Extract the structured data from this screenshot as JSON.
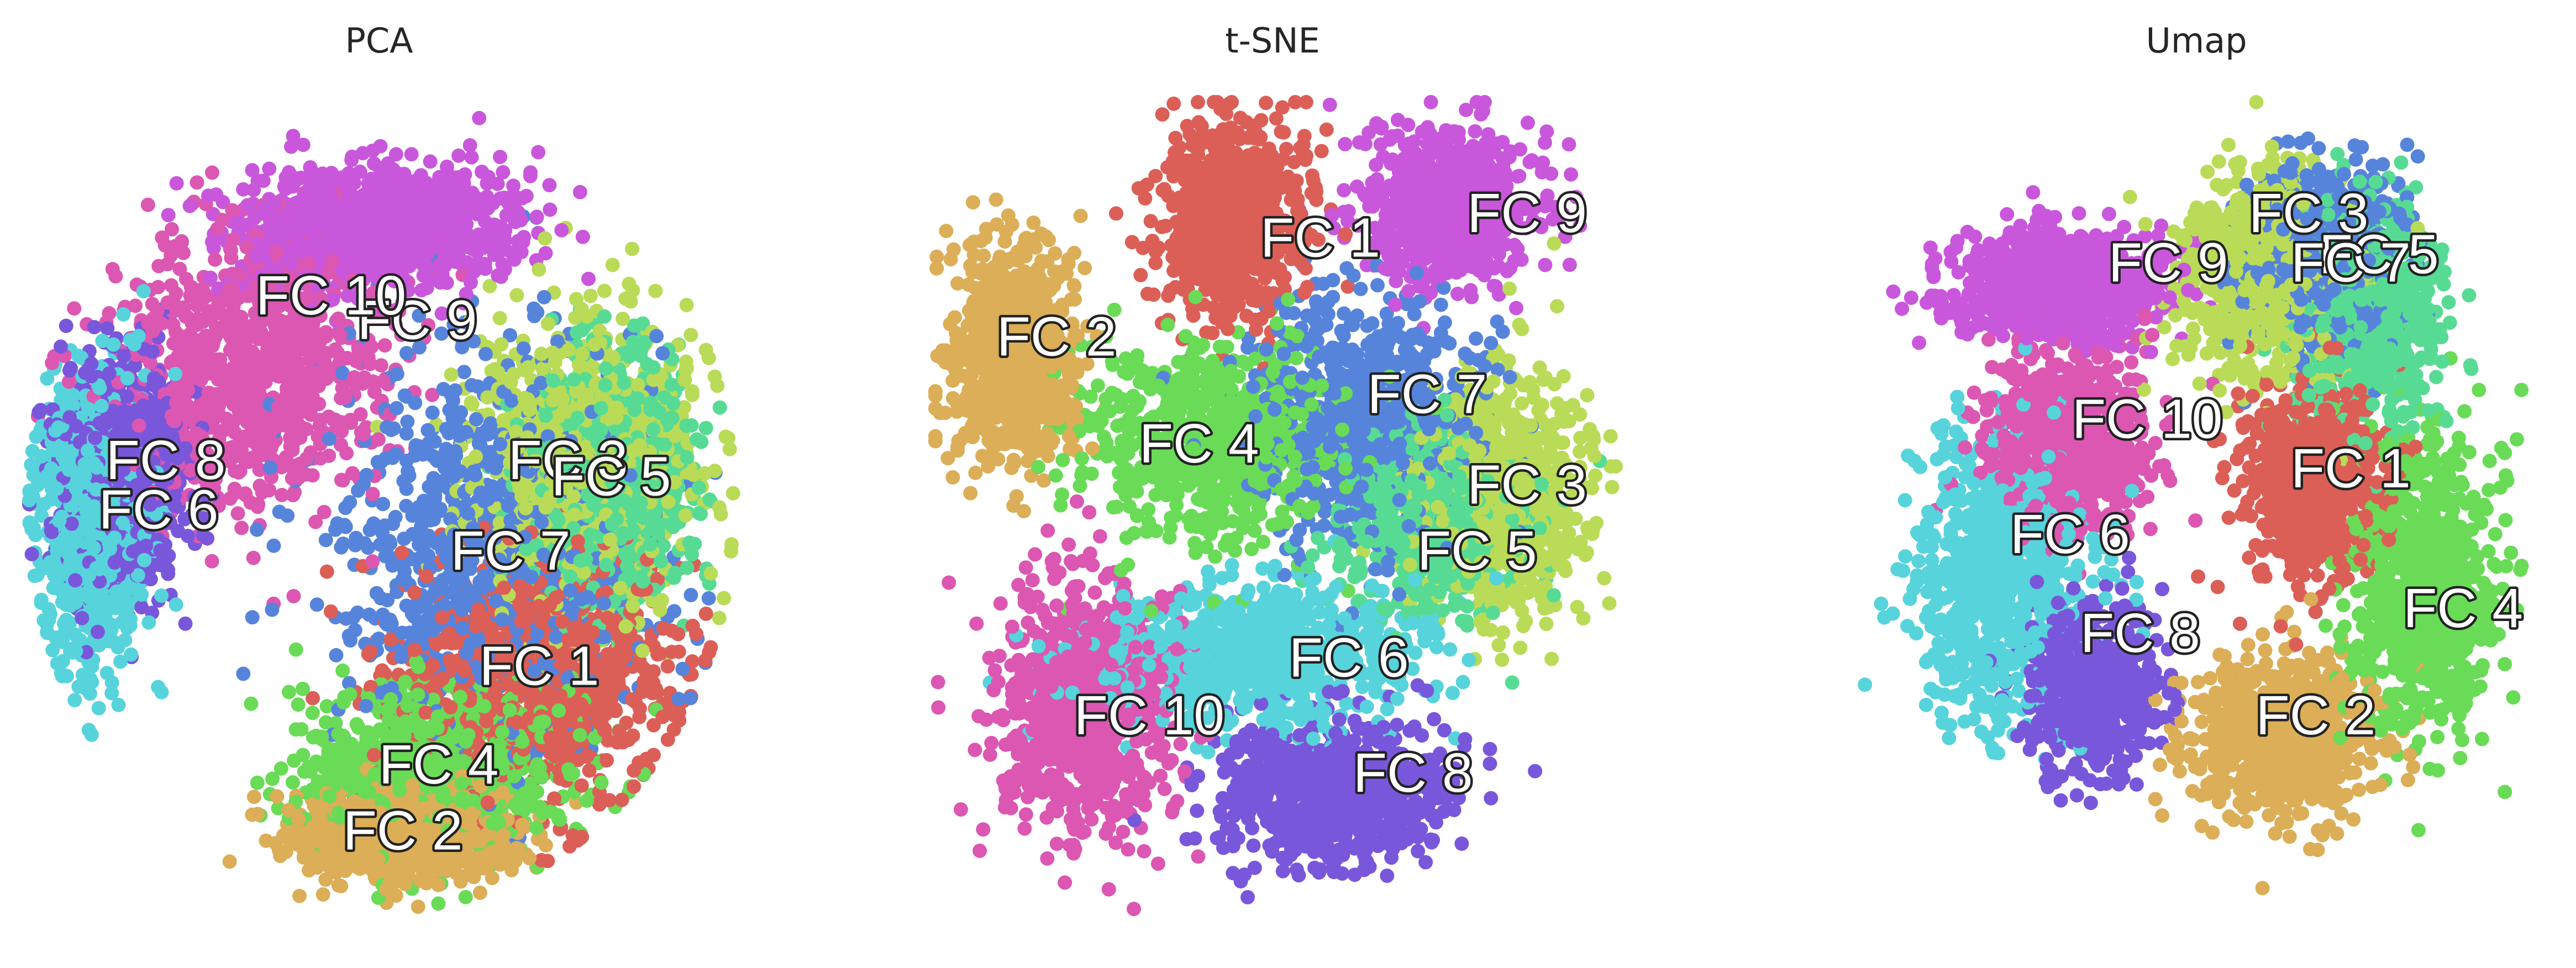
{
  "chart_data": [
    {
      "type": "scatter",
      "title": "PCA",
      "xlabel": "",
      "ylabel": "",
      "axes_visible": false,
      "xlim": [
        0,
        100
      ],
      "ylim": [
        0,
        100
      ],
      "clusters": [
        {
          "name": "FC 1",
          "color": "#db5f57",
          "center": [
            72,
            30
          ],
          "spread": [
            18,
            14
          ],
          "label_at": [
            72,
            30
          ]
        },
        {
          "name": "FC 2",
          "color": "#dbae57",
          "center": [
            53,
            10
          ],
          "spread": [
            14,
            5
          ],
          "label_at": [
            53,
            10
          ]
        },
        {
          "name": "FC 3",
          "color": "#b9db57",
          "center": [
            78,
            55
          ],
          "spread": [
            14,
            16
          ],
          "label_at": [
            76,
            55
          ]
        },
        {
          "name": "FC 4",
          "color": "#69db57",
          "center": [
            58,
            18
          ],
          "spread": [
            18,
            9
          ],
          "label_at": [
            58,
            18
          ]
        },
        {
          "name": "FC 5",
          "color": "#57db94",
          "center": [
            82,
            52
          ],
          "spread": [
            10,
            14
          ],
          "label_at": [
            82,
            53
          ]
        },
        {
          "name": "FC 6",
          "color": "#57d3db",
          "center": [
            10,
            48
          ],
          "spread": [
            7,
            16
          ],
          "label_at": [
            19,
            49
          ]
        },
        {
          "name": "FC 7",
          "color": "#5784db",
          "center": [
            65,
            45
          ],
          "spread": [
            20,
            22
          ],
          "label_at": [
            68,
            44
          ]
        },
        {
          "name": "FC 8",
          "color": "#7957db",
          "center": [
            14,
            54
          ],
          "spread": [
            8,
            12
          ],
          "label_at": [
            20,
            55
          ]
        },
        {
          "name": "FC 9",
          "color": "#c957db",
          "center": [
            50,
            84
          ],
          "spread": [
            18,
            7
          ],
          "label_at": [
            55,
            72
          ]
        },
        {
          "name": "FC 10",
          "color": "#db57b2",
          "center": [
            32,
            66
          ],
          "spread": [
            18,
            16
          ],
          "label_at": [
            43,
            75
          ]
        }
      ]
    },
    {
      "type": "scatter",
      "title": "t-SNE",
      "xlabel": "",
      "ylabel": "",
      "axes_visible": false,
      "xlim": [
        0,
        100
      ],
      "ylim": [
        0,
        100
      ],
      "clusters": [
        {
          "name": "FC 1",
          "color": "#db5f57",
          "center": [
            43,
            85
          ],
          "spread": [
            9,
            11
          ],
          "label_at": [
            55,
            82
          ]
        },
        {
          "name": "FC 2",
          "color": "#dbae57",
          "center": [
            12,
            68
          ],
          "spread": [
            8,
            12
          ],
          "label_at": [
            18,
            70
          ]
        },
        {
          "name": "FC 3",
          "color": "#b9db57",
          "center": [
            80,
            52
          ],
          "spread": [
            11,
            13
          ],
          "label_at": [
            84,
            52
          ]
        },
        {
          "name": "FC 4",
          "color": "#69db57",
          "center": [
            40,
            58
          ],
          "spread": [
            17,
            11
          ],
          "label_at": [
            38,
            57
          ]
        },
        {
          "name": "FC 5",
          "color": "#57db94",
          "center": [
            71,
            49
          ],
          "spread": [
            12,
            10
          ],
          "label_at": [
            77,
            44
          ]
        },
        {
          "name": "FC 6",
          "color": "#57d3db",
          "center": [
            46,
            32
          ],
          "spread": [
            21,
            8
          ],
          "label_at": [
            59,
            31
          ]
        },
        {
          "name": "FC 7",
          "color": "#5784db",
          "center": [
            62,
            60
          ],
          "spread": [
            14,
            14
          ],
          "label_at": [
            70,
            63
          ]
        },
        {
          "name": "FC 8",
          "color": "#7957db",
          "center": [
            57,
            15
          ],
          "spread": [
            15,
            8
          ],
          "label_at": [
            68,
            17
          ]
        },
        {
          "name": "FC 9",
          "color": "#c957db",
          "center": [
            73,
            86
          ],
          "spread": [
            11,
            8
          ],
          "label_at": [
            84,
            85
          ]
        },
        {
          "name": "FC 10",
          "color": "#db57b2",
          "center": [
            22,
            25
          ],
          "spread": [
            11,
            14
          ],
          "label_at": [
            31,
            24
          ]
        }
      ]
    },
    {
      "type": "scatter",
      "title": "Umap",
      "xlabel": "",
      "ylabel": "",
      "axes_visible": false,
      "xlim": [
        0,
        100
      ],
      "ylim": [
        0,
        100
      ],
      "clusters": [
        {
          "name": "FC 1",
          "color": "#db5f57",
          "center": [
            67,
            53
          ],
          "spread": [
            9,
            11
          ],
          "label_at": [
            72,
            54
          ]
        },
        {
          "name": "FC 2",
          "color": "#dbae57",
          "center": [
            62,
            22
          ],
          "spread": [
            12,
            9
          ],
          "label_at": [
            67,
            24
          ]
        },
        {
          "name": "FC 3",
          "color": "#b9db57",
          "center": [
            60,
            78
          ],
          "spread": [
            11,
            11
          ],
          "label_at": [
            66,
            85
          ]
        },
        {
          "name": "FC 4",
          "color": "#69db57",
          "center": [
            82,
            40
          ],
          "spread": [
            10,
            17
          ],
          "label_at": [
            88,
            37
          ]
        },
        {
          "name": "FC 5",
          "color": "#57db94",
          "center": [
            74,
            74
          ],
          "spread": [
            9,
            12
          ],
          "label_at": [
            76,
            80
          ]
        },
        {
          "name": "FC 6",
          "color": "#57d3db",
          "center": [
            22,
            42
          ],
          "spread": [
            12,
            16
          ],
          "label_at": [
            32,
            46
          ]
        },
        {
          "name": "FC 7",
          "color": "#5784db",
          "center": [
            68,
            80
          ],
          "spread": [
            10,
            10
          ],
          "label_at": [
            72,
            79
          ]
        },
        {
          "name": "FC 8",
          "color": "#7957db",
          "center": [
            35,
            28
          ],
          "spread": [
            8,
            9
          ],
          "label_at": [
            42,
            34
          ]
        },
        {
          "name": "FC 9",
          "color": "#c957db",
          "center": [
            30,
            77
          ],
          "spread": [
            14,
            6
          ],
          "label_at": [
            46,
            79
          ]
        },
        {
          "name": "FC 10",
          "color": "#db57b2",
          "center": [
            32,
            58
          ],
          "spread": [
            11,
            10
          ],
          "label_at": [
            43,
            60
          ]
        }
      ]
    }
  ]
}
